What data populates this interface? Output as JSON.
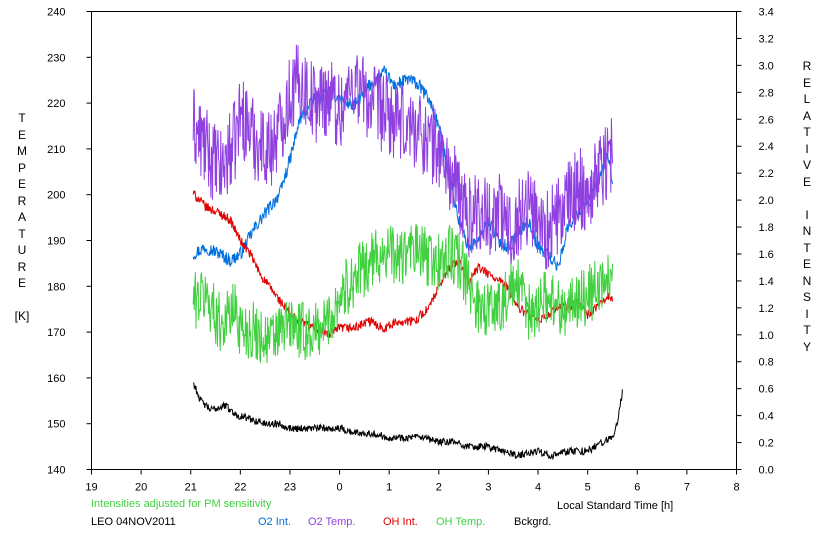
{
  "chart_data": {
    "type": "line",
    "title": "",
    "xlabel": "Local Standard Time [h]",
    "ylabel_left": "TEMPERATURE [K]",
    "ylabel_right": "RELATIVE INTENSITY",
    "xlim": [
      19,
      32
    ],
    "ylim_left": [
      140,
      240
    ],
    "ylim_right": [
      0.0,
      3.4
    ],
    "x_tick_labels": [
      "19",
      "20",
      "21",
      "22",
      "23",
      "0",
      "1",
      "2",
      "3",
      "4",
      "5",
      "6",
      "7",
      "8"
    ],
    "y_left_ticks": [
      140,
      150,
      160,
      170,
      180,
      190,
      200,
      210,
      220,
      230,
      240
    ],
    "y_right_ticks": [
      "0.0",
      "0.2",
      "0.4",
      "0.6",
      "0.8",
      "1.0",
      "1.2",
      "1.4",
      "1.6",
      "1.8",
      "2.0",
      "2.2",
      "2.4",
      "2.6",
      "2.8",
      "3.0",
      "3.2",
      "3.4"
    ],
    "grid": false,
    "series": [
      {
        "name": "O2 Int.",
        "color": "#0070e0",
        "axis": "right",
        "x": [
          21.05,
          21.3,
          21.6,
          21.8,
          22.0,
          22.3,
          22.6,
          22.8,
          23.0,
          23.2,
          23.5,
          23.8,
          24.0,
          24.3,
          24.6,
          24.9,
          25.1,
          25.4,
          25.6,
          25.8,
          26.0,
          26.2,
          26.4,
          26.6,
          26.8,
          27.0,
          27.2,
          27.4,
          27.6,
          27.8,
          28.0,
          28.2,
          28.4,
          28.6,
          28.8,
          29.0,
          29.2,
          29.4,
          29.5
        ],
        "y": [
          1.6,
          1.65,
          1.6,
          1.55,
          1.6,
          1.8,
          1.95,
          2.05,
          2.3,
          2.6,
          2.75,
          2.8,
          2.75,
          2.7,
          2.85,
          2.95,
          2.85,
          2.9,
          2.85,
          2.75,
          2.55,
          2.2,
          1.85,
          1.65,
          1.7,
          1.85,
          1.7,
          1.65,
          1.75,
          1.85,
          1.65,
          1.6,
          1.5,
          1.8,
          1.9,
          2.0,
          2.1,
          2.35,
          2.15
        ]
      },
      {
        "name": "O2 Temp.",
        "color": "#9040e0",
        "axis": "left",
        "x": [
          21.05,
          21.3,
          21.6,
          21.9,
          22.0,
          22.3,
          22.6,
          22.8,
          23.0,
          23.2,
          23.5,
          23.8,
          24.0,
          24.3,
          24.6,
          24.9,
          25.2,
          25.5,
          25.8,
          26.0,
          26.2,
          26.4,
          26.6,
          26.8,
          27.0,
          27.2,
          27.4,
          27.6,
          27.8,
          28.0,
          28.2,
          28.4,
          28.6,
          28.8,
          29.0,
          29.2,
          29.4,
          29.5
        ],
        "y": [
          215,
          210,
          205,
          212,
          218,
          212,
          210,
          215,
          222,
          225,
          220,
          222,
          218,
          225,
          220,
          218,
          215,
          215,
          212,
          210,
          205,
          200,
          195,
          197,
          195,
          197,
          192,
          195,
          198,
          195,
          192,
          195,
          198,
          202,
          200,
          205,
          208,
          210
        ]
      },
      {
        "name": "OH Int.",
        "color": "#e00000",
        "axis": "right",
        "x": [
          21.05,
          21.3,
          21.6,
          21.8,
          22.0,
          22.2,
          22.4,
          22.6,
          22.8,
          23.0,
          23.2,
          23.5,
          23.8,
          24.0,
          24.3,
          24.6,
          24.9,
          25.2,
          25.5,
          25.8,
          26.0,
          26.2,
          26.4,
          26.6,
          26.8,
          27.0,
          27.2,
          27.4,
          27.6,
          27.8,
          28.0,
          28.2,
          28.4,
          28.6,
          28.8,
          29.0,
          29.2,
          29.4,
          29.5
        ],
        "y": [
          2.05,
          1.95,
          1.9,
          1.85,
          1.7,
          1.6,
          1.45,
          1.35,
          1.25,
          1.15,
          1.1,
          1.05,
          1.0,
          1.05,
          1.05,
          1.1,
          1.05,
          1.1,
          1.1,
          1.2,
          1.35,
          1.5,
          1.55,
          1.4,
          1.5,
          1.45,
          1.4,
          1.35,
          1.2,
          1.15,
          1.1,
          1.15,
          1.2,
          1.2,
          1.25,
          1.15,
          1.2,
          1.3,
          1.25
        ]
      },
      {
        "name": "OH Temp.",
        "color": "#40d040",
        "axis": "left",
        "x": [
          21.05,
          21.3,
          21.6,
          21.9,
          22.0,
          22.3,
          22.6,
          22.8,
          23.0,
          23.2,
          23.5,
          23.8,
          24.0,
          24.3,
          24.6,
          24.9,
          25.2,
          25.5,
          25.8,
          26.0,
          26.2,
          26.4,
          26.6,
          26.8,
          27.0,
          27.2,
          27.4,
          27.6,
          27.8,
          28.0,
          28.2,
          28.4,
          28.6,
          28.8,
          29.0,
          29.2,
          29.4,
          29.5
        ],
        "y": [
          177,
          178,
          172,
          175,
          171,
          170,
          168,
          170,
          172,
          170,
          170,
          173,
          178,
          182,
          185,
          188,
          186,
          188,
          186,
          185,
          187,
          186,
          180,
          176,
          175,
          176,
          178,
          180,
          174,
          176,
          178,
          176,
          175,
          177,
          178,
          180,
          181,
          184
        ]
      },
      {
        "name": "Bckgrd.",
        "color": "#000000",
        "axis": "left",
        "x": [
          21.05,
          21.2,
          21.4,
          21.7,
          21.9,
          22.2,
          22.5,
          22.8,
          23.0,
          23.3,
          23.6,
          24.0,
          24.3,
          24.6,
          25.0,
          25.3,
          25.6,
          26.0,
          26.3,
          26.6,
          27.0,
          27.3,
          27.6,
          28.0,
          28.3,
          28.6,
          29.0,
          29.3,
          29.5,
          29.6,
          29.7
        ],
        "y": [
          159,
          155,
          153,
          154,
          152,
          151,
          150,
          150,
          149,
          149,
          149,
          149,
          148,
          148,
          147,
          147,
          147,
          146,
          146,
          145,
          145,
          144,
          143,
          144,
          143,
          144,
          144,
          146,
          147,
          150,
          157
        ]
      }
    ]
  },
  "footer": {
    "note": "Intensities adjusted for PM sensitivity",
    "station": "LEO 04NOV2011",
    "legend": {
      "o2_int": "O2 Int.",
      "o2_temp": "O2 Temp.",
      "oh_int": "OH Int.",
      "oh_temp": "OH Temp.",
      "bckgrd": "Bckgrd."
    }
  },
  "colors": {
    "note": "#40d040",
    "o2_int": "#0070e0",
    "o2_temp": "#9040e0",
    "oh_int": "#e00000",
    "oh_temp": "#40d040",
    "bckgrd": "#000000"
  }
}
